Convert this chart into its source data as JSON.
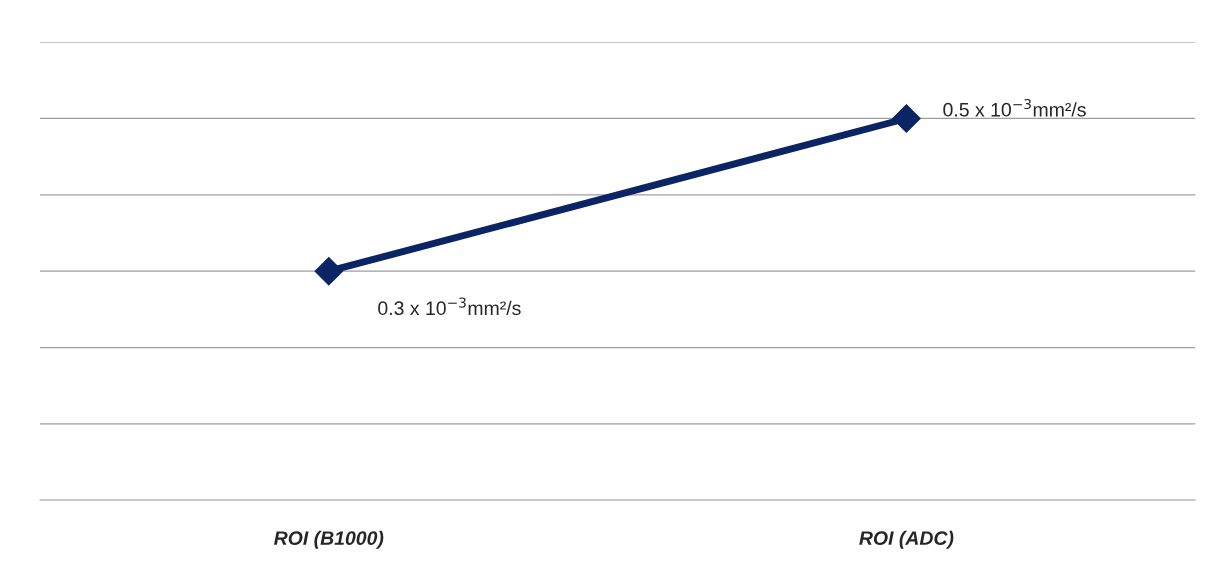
{
  "chart_data": {
    "type": "line",
    "categories": [
      "ROI (B1000)",
      "ROI (ADC)"
    ],
    "series": [
      {
        "color": "#0b2463",
        "values": [
          0.3,
          0.5
        ],
        "value_labels": [
          "0.3 x 10$^{−3}$mm²/s",
          "0.5 x 10$^{−3}$mm²/s"
        ]
      }
    ],
    "ylim": [
      0,
      0.6
    ],
    "yticks": [
      {
        "value": 0,
        "label": null
      },
      {
        "value": 0.1,
        "label": null
      },
      {
        "value": 0.2,
        "label": null
      },
      {
        "value": 0.3,
        "label": null
      },
      {
        "value": 0.4,
        "label": null
      },
      {
        "value": 0.5,
        "label": null
      },
      {
        "value": 0.6,
        "label": null
      }
    ],
    "grid": "y",
    "marker": "diamond",
    "line_style": "solid",
    "tick_labels": "x"
  }
}
